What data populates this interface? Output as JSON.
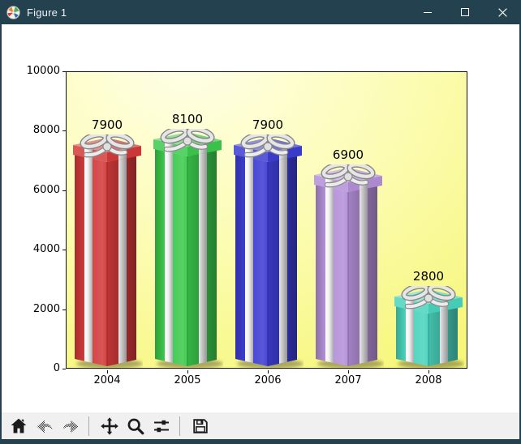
{
  "window": {
    "title": "Figure 1",
    "icon": "matplotlib-logo",
    "titlebar_color": "#24414f",
    "controls": [
      {
        "name": "minimize"
      },
      {
        "name": "maximize"
      },
      {
        "name": "close"
      }
    ]
  },
  "chart_data": {
    "type": "bar",
    "title": "",
    "xlabel": "",
    "ylabel": "",
    "categories": [
      "2004",
      "2005",
      "2006",
      "2007",
      "2008"
    ],
    "values": [
      7900,
      8100,
      7900,
      6900,
      2800
    ],
    "bar_value_labels": [
      "7900",
      "8100",
      "7900",
      "6900",
      "2800"
    ],
    "ylim": [
      0,
      10000
    ],
    "yticks": [
      0,
      2000,
      4000,
      6000,
      8000,
      10000
    ],
    "ytick_labels": [
      "0",
      "2000",
      "4000",
      "6000",
      "8000",
      "10000"
    ],
    "grid": false,
    "legend": null,
    "bar_style": "gift-box-image",
    "bar_colors": [
      {
        "name": "red",
        "base": "#d23a3a"
      },
      {
        "name": "green",
        "base": "#3bc94c"
      },
      {
        "name": "blue",
        "base": "#3d3dd2"
      },
      {
        "name": "purple",
        "base": "#b48fd9"
      },
      {
        "name": "teal",
        "base": "#49d4bd"
      }
    ],
    "ribbon_color": "#e8e8e8",
    "plot_background": {
      "inner": "#ffffe9",
      "mid": "#fcfcb2",
      "outer": "#f5f570"
    }
  },
  "toolbar": {
    "background": "#f0f0f0",
    "items": [
      {
        "type": "button",
        "name": "home",
        "icon": "home-icon",
        "enabled": true
      },
      {
        "type": "button",
        "name": "back",
        "icon": "arrow-left-icon",
        "enabled": false
      },
      {
        "type": "button",
        "name": "forward",
        "icon": "arrow-right-icon",
        "enabled": false
      },
      {
        "type": "separator"
      },
      {
        "type": "button",
        "name": "pan",
        "icon": "move-arrows-icon",
        "enabled": true
      },
      {
        "type": "button",
        "name": "zoom-to-rect",
        "icon": "magnifier-icon",
        "enabled": true
      },
      {
        "type": "button",
        "name": "configure-subplots",
        "icon": "sliders-icon",
        "enabled": true
      },
      {
        "type": "separator"
      },
      {
        "type": "button",
        "name": "save",
        "icon": "floppy-disk-icon",
        "enabled": true
      }
    ]
  }
}
